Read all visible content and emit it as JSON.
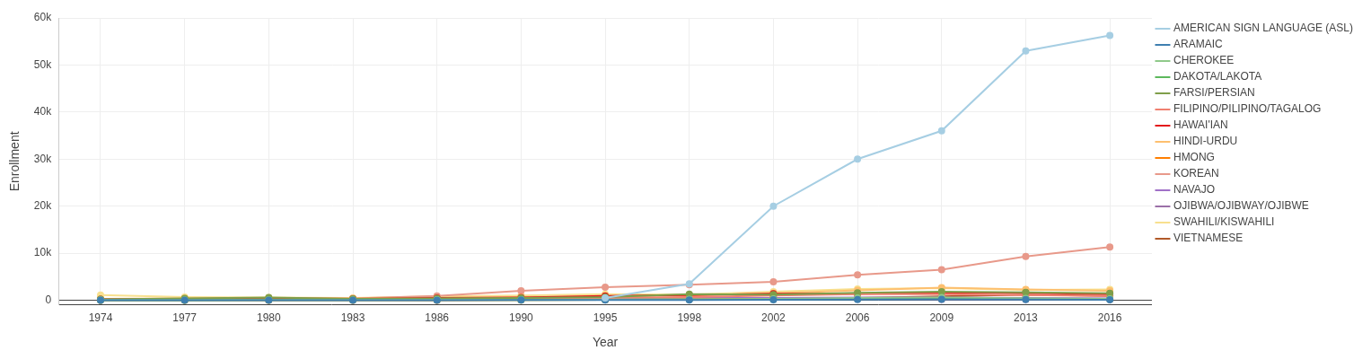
{
  "chart_data": {
    "type": "line",
    "x_label": "Year",
    "y_label": "Enrollment",
    "categories": [
      "1974",
      "1977",
      "1980",
      "1983",
      "1986",
      "1990",
      "1995",
      "1998",
      "2002",
      "2006",
      "2009",
      "2013",
      "2016"
    ],
    "ylim": [
      -1000,
      60000
    ],
    "yticks": [
      0,
      {
        "value": 10000,
        "label": "10k"
      },
      {
        "value": 20000,
        "label": "20k"
      },
      {
        "value": 30000,
        "label": "30k"
      },
      {
        "value": 40000,
        "label": "40k"
      },
      {
        "value": 50000,
        "label": "50k"
      },
      {
        "value": 60000,
        "label": "60k"
      }
    ],
    "grid": true,
    "legend": "right",
    "marker": "circle",
    "series": [
      {
        "name": "AMERICAN SIGN LANGUAGE (ASL)",
        "color": "#a6cee3",
        "values": [
          null,
          null,
          null,
          null,
          null,
          null,
          500,
          3500,
          20000,
          30000,
          36000,
          53000,
          56300
        ]
      },
      {
        "name": "ARAMAIC",
        "color": "#3f7fb0",
        "values": [
          0,
          0,
          0,
          0,
          20,
          50,
          60,
          80,
          100,
          150,
          200,
          150,
          120
        ]
      },
      {
        "name": "CHEROKEE",
        "color": "#8fc98a",
        "values": [
          50,
          60,
          70,
          60,
          100,
          100,
          150,
          200,
          300,
          500,
          600,
          400,
          300
        ]
      },
      {
        "name": "DAKOTA/LAKOTA",
        "color": "#5cb85c",
        "values": [
          20,
          30,
          40,
          50,
          60,
          80,
          100,
          150,
          200,
          300,
          400,
          350,
          300
        ]
      },
      {
        "name": "FARSI/PERSIAN",
        "color": "#7f9f4a",
        "values": [
          200,
          400,
          600,
          300,
          400,
          500,
          700,
          1300,
          1200,
          1600,
          1800,
          1700,
          1500
        ]
      },
      {
        "name": "FILIPINO/PILIPINO/TAGALOG",
        "color": "#f08070",
        "values": [
          50,
          100,
          150,
          200,
          300,
          400,
          500,
          700,
          1000,
          1300,
          1300,
          1100,
          900
        ]
      },
      {
        "name": "HAWAI'IAN",
        "color": "#e31a1c",
        "values": [
          200,
          300,
          400,
          300,
          500,
          600,
          900,
          1100,
          1400,
          1400,
          1600,
          1600,
          1300
        ]
      },
      {
        "name": "HINDI-URDU",
        "color": "#fdbf6f",
        "values": [
          300,
          400,
          400,
          400,
          500,
          700,
          900,
          1000,
          1500,
          2100,
          2700,
          2300,
          2000
        ]
      },
      {
        "name": "HMONG",
        "color": "#ff7f00",
        "values": [
          0,
          0,
          0,
          0,
          0,
          50,
          100,
          200,
          300,
          300,
          400,
          300,
          200
        ]
      },
      {
        "name": "KOREAN",
        "color": "#e8998a",
        "values": [
          100,
          150,
          200,
          400,
          900,
          2000,
          2800,
          3300,
          3900,
          5400,
          6500,
          9300,
          11300
        ]
      },
      {
        "name": "NAVAJO",
        "color": "#a070c8",
        "values": [
          100,
          150,
          200,
          200,
          300,
          300,
          400,
          500,
          500,
          600,
          600,
          500,
          400
        ]
      },
      {
        "name": "OJIBWA/OJIBWAY/OJIBWE",
        "color": "#9b6fa8",
        "values": [
          20,
          40,
          50,
          60,
          80,
          100,
          150,
          200,
          300,
          300,
          200,
          200,
          200
        ]
      },
      {
        "name": "SWAHILI/KISWAHILI",
        "color": "#f8e08e",
        "values": [
          1100,
          700,
          600,
          500,
          800,
          1000,
          1300,
          1200,
          1800,
          2400,
          2600,
          2200,
          2300
        ]
      },
      {
        "name": "VIETNAMESE",
        "color": "#b15928",
        "values": [
          100,
          100,
          150,
          100,
          150,
          200,
          300,
          400,
          500,
          500,
          800,
          1200,
          900
        ]
      }
    ]
  }
}
